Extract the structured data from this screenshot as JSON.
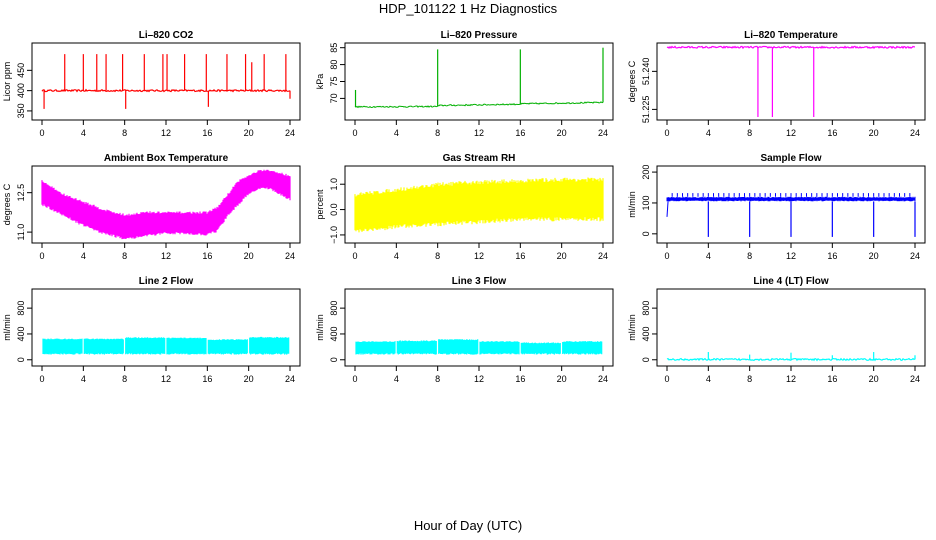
{
  "figure": {
    "title": "HDP_101122  1 Hz Diagnostics",
    "xlabel": "Hour of Day (UTC)"
  },
  "chart_data": [
    {
      "type": "line",
      "title": "Li–820 CO2",
      "ylabel": "Licor ppm",
      "color": "#ff0000",
      "xlim": [
        0,
        24
      ],
      "ylim": [
        335,
        510
      ],
      "xticks": [
        0,
        4,
        8,
        12,
        16,
        20,
        24
      ],
      "yticks": [
        350,
        400,
        450
      ],
      "baseline": 400,
      "spikes": [
        {
          "x": 0.2,
          "y": 355
        },
        {
          "x": 2.2,
          "y": 490
        },
        {
          "x": 4.0,
          "y": 490
        },
        {
          "x": 5.3,
          "y": 490
        },
        {
          "x": 6.2,
          "y": 490
        },
        {
          "x": 7.8,
          "y": 490
        },
        {
          "x": 8.1,
          "y": 355
        },
        {
          "x": 9.9,
          "y": 490
        },
        {
          "x": 11.7,
          "y": 490
        },
        {
          "x": 12.1,
          "y": 490
        },
        {
          "x": 13.8,
          "y": 490
        },
        {
          "x": 15.9,
          "y": 490
        },
        {
          "x": 16.1,
          "y": 360
        },
        {
          "x": 17.9,
          "y": 490
        },
        {
          "x": 19.7,
          "y": 490
        },
        {
          "x": 20.3,
          "y": 470
        },
        {
          "x": 21.5,
          "y": 490
        },
        {
          "x": 23.6,
          "y": 490
        },
        {
          "x": 24.0,
          "y": 380
        }
      ]
    },
    {
      "type": "line",
      "title": "Li–820 Pressure",
      "ylabel": "kPa",
      "color": "#00b000",
      "xlim": [
        0,
        24
      ],
      "ylim": [
        64.5,
        85.5
      ],
      "xticks": [
        0,
        4,
        8,
        12,
        16,
        20,
        24
      ],
      "yticks": [
        70,
        75,
        80,
        85
      ],
      "baseline": [
        [
          0,
          67.5
        ],
        [
          7.9,
          67.6
        ],
        [
          8.2,
          67.9
        ],
        [
          15.9,
          68.3
        ],
        [
          16.2,
          68.4
        ],
        [
          24,
          68.8
        ]
      ],
      "spikes": [
        {
          "x": 0.05,
          "y": 72.5
        },
        {
          "x": 8.0,
          "y": 84.5
        },
        {
          "x": 16.0,
          "y": 84.5
        },
        {
          "x": 24.0,
          "y": 85.0
        }
      ]
    },
    {
      "type": "line",
      "title": "Li–820 Temperature",
      "ylabel": "degrees C",
      "color": "#ff00ff",
      "xlim": [
        0,
        24
      ],
      "ylim": [
        51.222,
        51.25
      ],
      "xticks": [
        0,
        4,
        8,
        12,
        16,
        20,
        24
      ],
      "yticks": [
        51.225,
        51.24
      ],
      "yticklabels": [
        "51.225",
        "51.240"
      ],
      "baseline": 51.2495,
      "spikes": [
        {
          "x": 8.8,
          "y": 51.222
        },
        {
          "x": 10.2,
          "y": 51.222
        },
        {
          "x": 14.2,
          "y": 51.222
        }
      ]
    },
    {
      "type": "area",
      "title": "Ambient Box Temperature",
      "ylabel": "degrees C",
      "color": "#ff00ff",
      "xlim": [
        0,
        24
      ],
      "ylim": [
        10.7,
        13.4
      ],
      "xticks": [
        0,
        4,
        8,
        12,
        16,
        20,
        24
      ],
      "yticks": [
        11.0,
        12.5
      ],
      "yticklabels": [
        "11.0",
        "12.5"
      ],
      "band": [
        {
          "x": 0,
          "lo": 12.1,
          "hi": 12.9
        },
        {
          "x": 2,
          "lo": 11.7,
          "hi": 12.4
        },
        {
          "x": 4,
          "lo": 11.3,
          "hi": 12.1
        },
        {
          "x": 6,
          "lo": 11.0,
          "hi": 11.8
        },
        {
          "x": 8,
          "lo": 10.8,
          "hi": 11.6
        },
        {
          "x": 10,
          "lo": 10.9,
          "hi": 11.7
        },
        {
          "x": 12,
          "lo": 11.0,
          "hi": 11.7
        },
        {
          "x": 14,
          "lo": 11.0,
          "hi": 11.7
        },
        {
          "x": 16,
          "lo": 10.95,
          "hi": 11.7
        },
        {
          "x": 17,
          "lo": 11.1,
          "hi": 11.9
        },
        {
          "x": 18,
          "lo": 11.7,
          "hi": 12.4
        },
        {
          "x": 19,
          "lo": 12.1,
          "hi": 12.9
        },
        {
          "x": 20,
          "lo": 12.5,
          "hi": 13.1
        },
        {
          "x": 21,
          "lo": 12.7,
          "hi": 13.3
        },
        {
          "x": 22,
          "lo": 12.7,
          "hi": 13.3
        },
        {
          "x": 23,
          "lo": 12.5,
          "hi": 13.2
        },
        {
          "x": 24,
          "lo": 12.3,
          "hi": 13.1
        }
      ]
    },
    {
      "type": "area",
      "title": "Gas Stream RH",
      "ylabel": "percent",
      "color": "#ffff00",
      "xlim": [
        0,
        24
      ],
      "ylim": [
        -1.2,
        1.6
      ],
      "xticks": [
        0,
        4,
        8,
        12,
        16,
        20,
        24
      ],
      "yticks": [
        -1.0,
        0.0,
        1.0
      ],
      "yticklabels": [
        "−1.0",
        "0.0",
        "1.0"
      ],
      "band": [
        {
          "x": 0,
          "lo": -0.8,
          "hi": 0.5
        },
        {
          "x": 4,
          "lo": -0.6,
          "hi": 0.7
        },
        {
          "x": 8,
          "lo": -0.5,
          "hi": 0.9
        },
        {
          "x": 12,
          "lo": -0.4,
          "hi": 1.0
        },
        {
          "x": 16,
          "lo": -0.3,
          "hi": 1.05
        },
        {
          "x": 20,
          "lo": -0.3,
          "hi": 1.1
        },
        {
          "x": 24,
          "lo": -0.3,
          "hi": 1.1
        }
      ]
    },
    {
      "type": "line",
      "title": "Sample Flow",
      "ylabel": "ml/min",
      "color": "#0000ff",
      "xlim": [
        0,
        24
      ],
      "ylim": [
        -20,
        210
      ],
      "xticks": [
        0,
        4,
        8,
        12,
        16,
        20,
        24
      ],
      "yticks": [
        0,
        100,
        200
      ],
      "band": [
        {
          "x": 0,
          "lo": 105,
          "hi": 120
        },
        {
          "x": 24,
          "lo": 105,
          "hi": 120
        }
      ],
      "startup": {
        "x": 0,
        "y": 55
      },
      "dips": [
        4,
        8,
        12,
        16,
        20,
        24
      ],
      "dip_value": -10
    },
    {
      "type": "area",
      "title": "Line 2 Flow",
      "ylabel": "ml/min",
      "color": "#00ffff",
      "xlim": [
        0,
        24
      ],
      "ylim": [
        -50,
        1050
      ],
      "xticks": [
        0,
        4,
        8,
        12,
        16,
        20,
        24
      ],
      "yticks": [
        0,
        400,
        800
      ],
      "segments": [
        {
          "x0": 0,
          "x1": 4,
          "lo": 80,
          "hi": 330
        },
        {
          "x0": 4,
          "x1": 8,
          "lo": 80,
          "hi": 330
        },
        {
          "x0": 8,
          "x1": 12,
          "lo": 80,
          "hi": 350
        },
        {
          "x0": 12,
          "x1": 16,
          "lo": 80,
          "hi": 345
        },
        {
          "x0": 16,
          "x1": 20,
          "lo": 80,
          "hi": 320
        },
        {
          "x0": 20,
          "x1": 24,
          "lo": 80,
          "hi": 355
        }
      ]
    },
    {
      "type": "area",
      "title": "Line 3 Flow",
      "ylabel": "ml/min",
      "color": "#00ffff",
      "xlim": [
        0,
        24
      ],
      "ylim": [
        -50,
        1050
      ],
      "xticks": [
        0,
        4,
        8,
        12,
        16,
        20,
        24
      ],
      "yticks": [
        0,
        400,
        800
      ],
      "segments": [
        {
          "x0": 0,
          "x1": 4,
          "lo": 80,
          "hi": 290
        },
        {
          "x0": 4,
          "x1": 8,
          "lo": 80,
          "hi": 300
        },
        {
          "x0": 8,
          "x1": 12,
          "lo": 80,
          "hi": 320
        },
        {
          "x0": 12,
          "x1": 16,
          "lo": 80,
          "hi": 290
        },
        {
          "x0": 16,
          "x1": 20,
          "lo": 80,
          "hi": 270
        },
        {
          "x0": 20,
          "x1": 24,
          "lo": 80,
          "hi": 290
        }
      ]
    },
    {
      "type": "line",
      "title": "Line 4 (LT) Flow",
      "ylabel": "ml/min",
      "color": "#00ffff",
      "xlim": [
        0,
        24
      ],
      "ylim": [
        -50,
        1050
      ],
      "xticks": [
        0,
        4,
        8,
        12,
        16,
        20,
        24
      ],
      "yticks": [
        0,
        400,
        800
      ],
      "baseline": 5,
      "spikes": [
        {
          "x": 4.0,
          "y": 120
        },
        {
          "x": 8.0,
          "y": 80
        },
        {
          "x": 12.0,
          "y": 110
        },
        {
          "x": 16.0,
          "y": 70
        },
        {
          "x": 20.0,
          "y": 120
        },
        {
          "x": 24.0,
          "y": 70
        }
      ]
    }
  ]
}
